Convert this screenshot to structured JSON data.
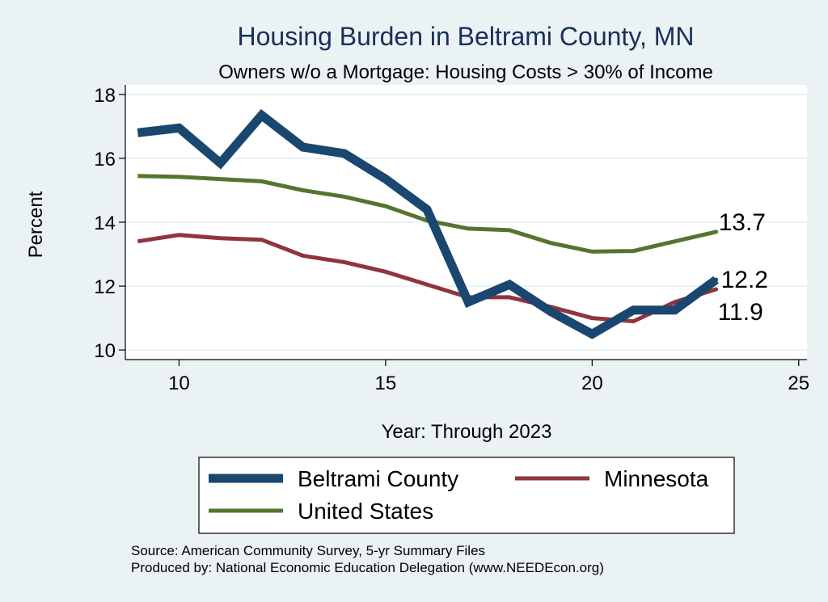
{
  "chart_data": {
    "type": "line",
    "title": "Housing Burden in Beltrami County, MN",
    "subtitle": "Owners w/o a Mortgage: Housing Costs > 30% of Income",
    "xlabel": "Year: Through 2023",
    "ylabel": "Percent",
    "xlim": [
      8.7,
      25.2
    ],
    "ylim": [
      9.7,
      18.3
    ],
    "xticks": [
      10,
      15,
      20,
      25
    ],
    "yticks": [
      10,
      12,
      14,
      16,
      18
    ],
    "x": [
      9,
      10,
      11,
      12,
      13,
      14,
      15,
      16,
      17,
      18,
      19,
      20,
      21,
      22,
      23
    ],
    "series": [
      {
        "name": "Beltrami County",
        "color": "#1a476f",
        "values": [
          16.8,
          16.95,
          15.85,
          17.35,
          16.35,
          16.15,
          15.35,
          14.4,
          11.5,
          12.05,
          11.2,
          10.5,
          11.25,
          11.25,
          12.2
        ],
        "end_label": "12.2"
      },
      {
        "name": "Minnesota",
        "color": "#90353b",
        "values": [
          13.4,
          13.6,
          13.5,
          13.45,
          12.95,
          12.75,
          12.45,
          12.05,
          11.65,
          11.65,
          11.35,
          11.0,
          10.9,
          11.5,
          11.9
        ],
        "end_label": "11.9"
      },
      {
        "name": "United States",
        "color": "#55752f",
        "values": [
          15.45,
          15.42,
          15.35,
          15.28,
          15.0,
          14.8,
          14.5,
          14.05,
          13.8,
          13.75,
          13.35,
          13.08,
          13.1,
          13.4,
          13.7
        ],
        "end_label": "13.7"
      }
    ],
    "legend": [
      "Beltrami County",
      "Minnesota",
      "United States"
    ]
  },
  "source_note": "Source: American Community Survey, 5-yr Summary Files",
  "produced_note": "Produced by: National Economic Education Delegation (www.NEEDEcon.org)"
}
